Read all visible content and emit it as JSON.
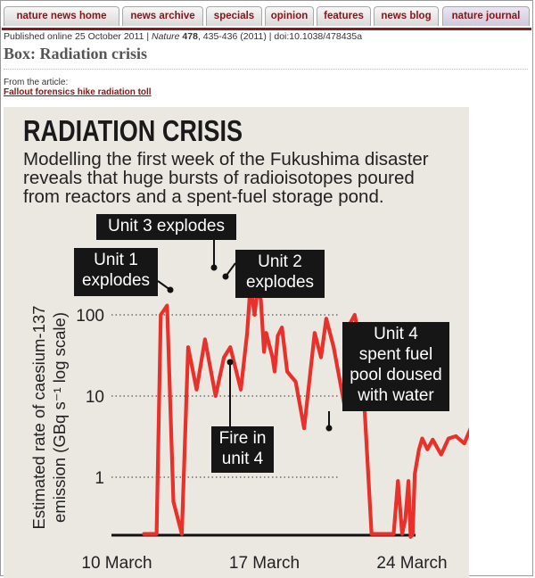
{
  "nav": {
    "tabs": [
      {
        "label": "nature news home",
        "active": false
      },
      {
        "label": "news archive",
        "active": false
      },
      {
        "label": "specials",
        "active": false
      },
      {
        "label": "opinion",
        "active": false
      },
      {
        "label": "features",
        "active": false
      },
      {
        "label": "news blog",
        "active": false
      },
      {
        "label": "nature journal",
        "active": true
      }
    ]
  },
  "publication": {
    "prefix": "Published online 25 October 2011 | ",
    "journal": "Nature",
    "volume": "478",
    "pages": ", 435-436 (2011) | doi:10.1038/478435a"
  },
  "box_title": "Box: Radiation crisis",
  "from_article_label": "From the article:",
  "article_link": "Fallout forensics hike radiation toll",
  "graphic": {
    "title": "RADIATION CRISIS",
    "description_lines": [
      "Modelling the first week of the Fukushima disaster",
      "reveals that huge bursts of radioisotopes poured",
      "from reactors and a spent-fuel storage pond."
    ]
  },
  "chart_data": {
    "type": "line",
    "ylabel_line1": "Estimated rate of caesium-137",
    "ylabel_line2": "emission (GBq s⁻¹ log scale)",
    "y_scale": "log",
    "yticks": [
      "1",
      "10",
      "100"
    ],
    "xticks": [
      "10 March",
      "17 March",
      "24 March"
    ],
    "grid": "dotted horizontal at 1, 10, 100",
    "line_color": "#e8312a",
    "series": [
      {
        "x_days_since_march_10": [
          1.2,
          1.8,
          2.0,
          2.3,
          2.6,
          3.0,
          3.3,
          3.7,
          4.1,
          4.6,
          5.0,
          5.3,
          5.8,
          6.1,
          6.25,
          6.45,
          6.6,
          6.75,
          6.9,
          7.0,
          7.3,
          7.4,
          7.55,
          7.75,
          8.0,
          8.4,
          8.8,
          9.3,
          9.6,
          9.85,
          10.2,
          10.7,
          11.0,
          11.2,
          11.5,
          11.7,
          12.0,
          12.3,
          12.55,
          12.8,
          13.05,
          13.25,
          13.45,
          13.6,
          13.75,
          13.85,
          13.95,
          14.05,
          14.25,
          14.4,
          14.65,
          14.9,
          15.3,
          15.65,
          16.0,
          16.4,
          16.7,
          17.0
        ],
        "values": [
          0.2,
          0.2,
          100,
          130,
          0.5,
          0.2,
          40,
          12,
          50,
          10,
          30,
          40,
          12,
          60,
          230,
          100,
          220,
          150,
          35,
          60,
          30,
          20,
          55,
          70,
          20,
          15,
          4,
          60,
          30,
          90,
          40,
          8,
          80,
          100,
          40,
          5,
          0.2,
          0.2,
          0.2,
          0.2,
          0.2,
          0.9,
          0.2,
          0.3,
          0.9,
          0.15,
          0.2,
          1.1,
          2.2,
          3,
          2.2,
          2.9,
          1.9,
          3,
          3.2,
          2.6,
          4,
          5
        ]
      }
    ],
    "annotations": [
      {
        "label_lines": [
          "Unit 1",
          "explodes"
        ],
        "x": 2.3,
        "y": 100
      },
      {
        "label_lines": [
          "Unit 3 explodes"
        ],
        "x": 6.25,
        "y": 230
      },
      {
        "label_lines": [
          "Unit 2",
          "explodes"
        ],
        "x": 6.6,
        "y": 220
      },
      {
        "label_lines": [
          "Fire in",
          "unit 4"
        ],
        "x": 6.9,
        "y": 35
      },
      {
        "label_lines": [
          "Unit 4",
          "spent fuel",
          "pool doused",
          "with water"
        ],
        "x": 11.5,
        "y": 5
      }
    ]
  }
}
